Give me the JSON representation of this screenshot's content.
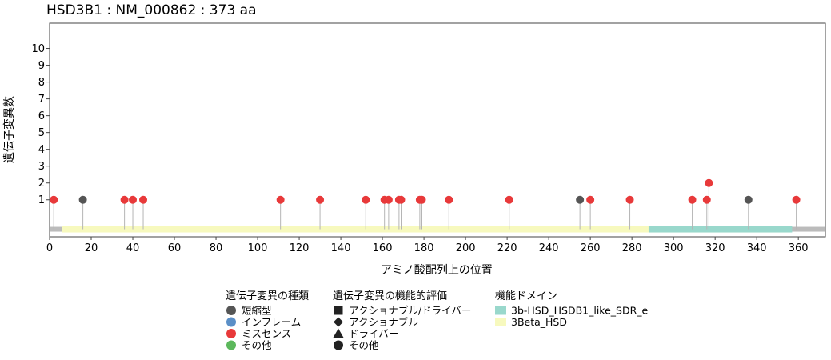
{
  "chart_data": {
    "type": "scatter",
    "subtype": "lollipop",
    "title": "HSD3B1 : NM_000862 : 373 aa",
    "xlabel": "アミノ酸配列上の位置",
    "ylabel": "遺伝子変異数",
    "xlim": [
      0,
      373
    ],
    "ylim": [
      -1.2,
      11.5
    ],
    "x_ticks": [
      0,
      20,
      40,
      60,
      80,
      100,
      120,
      140,
      160,
      180,
      200,
      220,
      240,
      260,
      280,
      300,
      320,
      340,
      360
    ],
    "y_ticks": [
      1,
      2,
      3,
      4,
      5,
      6,
      7,
      8,
      9,
      10
    ],
    "grid": false,
    "protein_length": 373,
    "variant_type_colors": {
      "短縮型": "#555555",
      "インフレーム": "#5b8fc7",
      "ミスセンス": "#e8393a",
      "その他": "#5cb85c"
    },
    "points": [
      {
        "x": 2,
        "y": 1,
        "type": "ミスセンス"
      },
      {
        "x": 16,
        "y": 1,
        "type": "短縮型"
      },
      {
        "x": 36,
        "y": 1,
        "type": "ミスセンス"
      },
      {
        "x": 40,
        "y": 1,
        "type": "ミスセンス"
      },
      {
        "x": 45,
        "y": 1,
        "type": "ミスセンス"
      },
      {
        "x": 111,
        "y": 1,
        "type": "ミスセンス"
      },
      {
        "x": 130,
        "y": 1,
        "type": "ミスセンス"
      },
      {
        "x": 152,
        "y": 1,
        "type": "ミスセンス"
      },
      {
        "x": 161,
        "y": 1,
        "type": "ミスセンス"
      },
      {
        "x": 163,
        "y": 1,
        "type": "ミスセンス"
      },
      {
        "x": 168,
        "y": 1,
        "type": "ミスセンス"
      },
      {
        "x": 169,
        "y": 1,
        "type": "ミスセンス"
      },
      {
        "x": 178,
        "y": 1,
        "type": "ミスセンス"
      },
      {
        "x": 179,
        "y": 1,
        "type": "ミスセンス"
      },
      {
        "x": 192,
        "y": 1,
        "type": "ミスセンス"
      },
      {
        "x": 221,
        "y": 1,
        "type": "ミスセンス"
      },
      {
        "x": 255,
        "y": 1,
        "type": "短縮型"
      },
      {
        "x": 260,
        "y": 1,
        "type": "ミスセンス"
      },
      {
        "x": 279,
        "y": 1,
        "type": "ミスセンス"
      },
      {
        "x": 309,
        "y": 1,
        "type": "ミスセンス"
      },
      {
        "x": 316,
        "y": 1,
        "type": "ミスセンス"
      },
      {
        "x": 317,
        "y": 2,
        "type": "ミスセンス"
      },
      {
        "x": 336,
        "y": 1,
        "type": "短縮型"
      },
      {
        "x": 359,
        "y": 1,
        "type": "ミスセンス"
      }
    ],
    "domains": [
      {
        "name": "3Beta_HSD",
        "start": 6,
        "end": 356,
        "color": "#f7f9be"
      },
      {
        "name": "3b-HSD_HSDB1_like_SDR_e",
        "start": 288,
        "end": 357,
        "color": "#99d8cc"
      }
    ],
    "backbone_color": "#bbbbbb",
    "legend": {
      "groups": [
        {
          "title": "遺伝子変異の種類",
          "items": [
            {
              "label": "短縮型",
              "shape": "circle",
              "color": "#555555"
            },
            {
              "label": "インフレーム",
              "shape": "circle",
              "color": "#5b8fc7"
            },
            {
              "label": "ミスセンス",
              "shape": "circle",
              "color": "#e8393a"
            },
            {
              "label": "その他",
              "shape": "circle",
              "color": "#5cb85c"
            }
          ]
        },
        {
          "title": "遺伝子変異の機能的評価",
          "items": [
            {
              "label": "アクショナブル/ドライバー",
              "shape": "square",
              "color": "#222222"
            },
            {
              "label": "アクショナブル",
              "shape": "diamond",
              "color": "#222222"
            },
            {
              "label": "ドライバー",
              "shape": "triangle",
              "color": "#222222"
            },
            {
              "label": "その他",
              "shape": "circle",
              "color": "#222222"
            }
          ]
        },
        {
          "title": "機能ドメイン",
          "items": [
            {
              "label": "3b-HSD_HSDB1_like_SDR_e",
              "shape": "rect",
              "color": "#99d8cc"
            },
            {
              "label": "3Beta_HSD",
              "shape": "rect",
              "color": "#f7f9be"
            }
          ]
        }
      ]
    }
  }
}
